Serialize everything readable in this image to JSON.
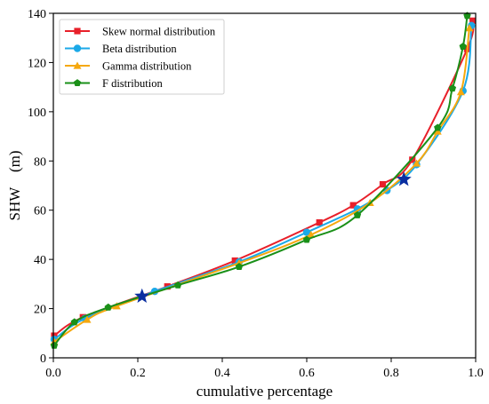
{
  "chart_data": {
    "type": "line",
    "title": "",
    "xlabel": "cumulative percentage",
    "ylabel": "SHW　(m)",
    "xlim": [
      0,
      1
    ],
    "ylim": [
      0,
      140
    ],
    "x_ticks": [
      0.0,
      0.2,
      0.4,
      0.6,
      0.8,
      1.0
    ],
    "x_tick_labels": [
      "0.0",
      "0.2",
      "0.4",
      "0.6",
      "0.8",
      "1.0"
    ],
    "y_ticks": [
      0,
      20,
      40,
      60,
      80,
      100,
      120,
      140
    ],
    "y_tick_labels": [
      "0",
      "20",
      "40",
      "60",
      "80",
      "100",
      "120",
      "140"
    ],
    "grid": false,
    "legend_position": "top-left",
    "series": [
      {
        "name": "Skew normal distribution",
        "color": "#e8202a",
        "marker": "square",
        "points": [
          [
            0.002,
            9
          ],
          [
            0.07,
            16.5
          ],
          [
            0.27,
            29
          ],
          [
            0.43,
            39.5
          ],
          [
            0.63,
            55
          ],
          [
            0.71,
            62
          ],
          [
            0.78,
            70.5
          ],
          [
            0.85,
            80.5
          ],
          [
            0.98,
            125.5
          ],
          [
            0.993,
            137
          ]
        ]
      },
      {
        "name": "Beta distribution",
        "color": "#1ba9e8",
        "marker": "circle",
        "points": [
          [
            0.002,
            7.5
          ],
          [
            0.075,
            16
          ],
          [
            0.24,
            27
          ],
          [
            0.44,
            39
          ],
          [
            0.6,
            51
          ],
          [
            0.72,
            60.5
          ],
          [
            0.79,
            68
          ],
          [
            0.86,
            78.5
          ],
          [
            0.97,
            108.5
          ],
          [
            0.99,
            135
          ]
        ]
      },
      {
        "name": "Gamma distribution",
        "color": "#f5a80e",
        "marker": "triangle",
        "points": [
          [
            0.002,
            6.5
          ],
          [
            0.08,
            15.5
          ],
          [
            0.15,
            21
          ],
          [
            0.44,
            38.5
          ],
          [
            0.61,
            50
          ],
          [
            0.75,
            63
          ],
          [
            0.86,
            79
          ],
          [
            0.91,
            92
          ],
          [
            0.965,
            108
          ],
          [
            0.985,
            134
          ]
        ]
      },
      {
        "name": "F distribution",
        "color": "#1a9018",
        "marker": "pentagon",
        "points": [
          [
            0.002,
            5
          ],
          [
            0.05,
            14.5
          ],
          [
            0.13,
            20.5
          ],
          [
            0.295,
            29.5
          ],
          [
            0.44,
            37
          ],
          [
            0.6,
            48
          ],
          [
            0.72,
            58
          ],
          [
            0.91,
            93.5
          ],
          [
            0.945,
            109.5
          ],
          [
            0.97,
            126.5
          ],
          [
            0.98,
            139
          ]
        ]
      }
    ],
    "annotations": [
      {
        "type": "star",
        "color": "#0a2ea0",
        "x": 0.21,
        "y": 25
      },
      {
        "type": "star",
        "color": "#0a2ea0",
        "x": 0.83,
        "y": 72.5
      }
    ]
  }
}
